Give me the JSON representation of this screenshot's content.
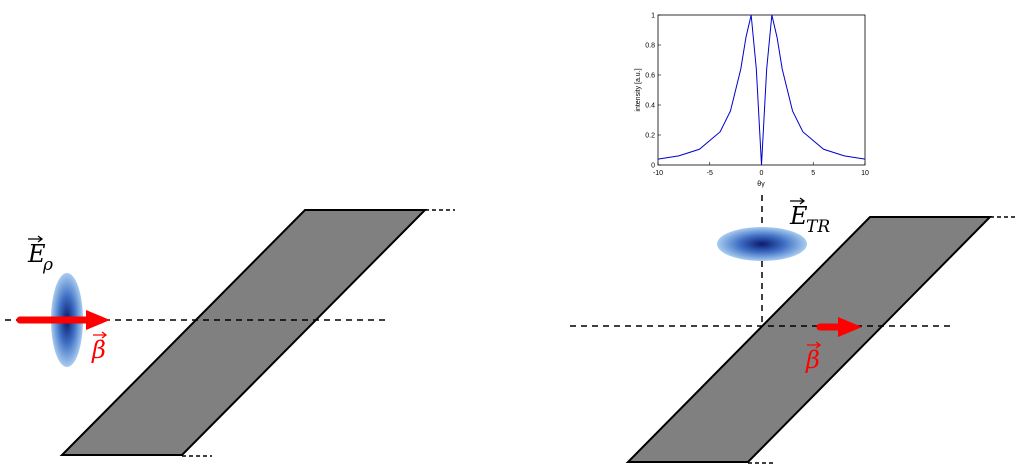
{
  "left": {
    "field_label": {
      "symbol": "E",
      "subscript": "ρ"
    },
    "velocity_label": "β"
  },
  "right": {
    "field_label": {
      "symbol": "E",
      "subscript": "TR"
    },
    "velocity_label": "β"
  },
  "chart_data": {
    "type": "line",
    "x_label": "θγ",
    "y_label": "intensity [a.u.]",
    "x": [
      -10,
      -8,
      -6,
      -4,
      -3,
      -2,
      -1.5,
      -1,
      -0.5,
      0,
      0.5,
      1,
      1.5,
      2,
      3,
      4,
      6,
      8,
      10
    ],
    "series": [
      {
        "name": "intensity",
        "color": "#0000cc",
        "values": [
          0.039,
          0.061,
          0.105,
          0.221,
          0.36,
          0.64,
          0.852,
          1,
          0.64,
          0,
          0.64,
          1,
          0.852,
          0.64,
          0.36,
          0.221,
          0.105,
          0.061,
          0.039
        ]
      }
    ],
    "xlim": [
      -10,
      10
    ],
    "ylim": [
      0,
      1
    ],
    "xticks": [
      -10,
      -5,
      0,
      5,
      10
    ],
    "yticks": [
      0,
      0.2,
      0.4,
      0.6,
      0.8,
      1
    ]
  }
}
